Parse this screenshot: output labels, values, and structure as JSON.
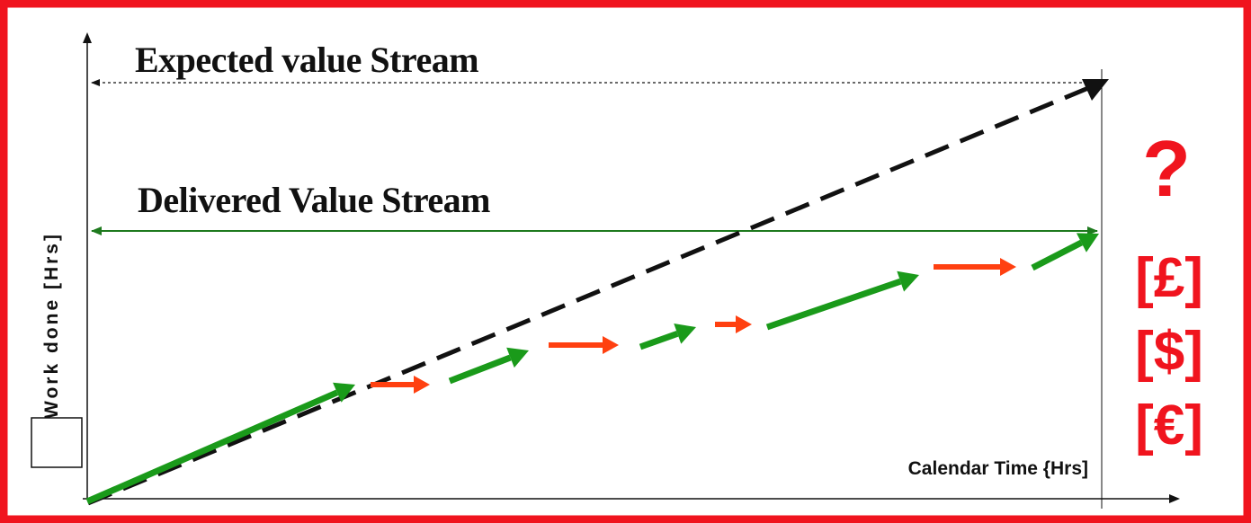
{
  "diagram": {
    "expected_stream_label": "Expected value Stream",
    "delivered_stream_label": "Delivered Value Stream",
    "y_axis_label": "Work done [Hrs]",
    "x_axis_label": "Calendar Time {Hrs]",
    "uncertainty_symbol": "?",
    "currencies": [
      "[£]",
      "[$]",
      "[€]"
    ]
  },
  "colors": {
    "frame": "#f0141e",
    "progress_segment": "#1a9a1a",
    "delay_segment": "#ff4010",
    "expected_line": "#111111",
    "delivered_line": "#1e7a1e",
    "currency_text": "#f0141e"
  }
}
